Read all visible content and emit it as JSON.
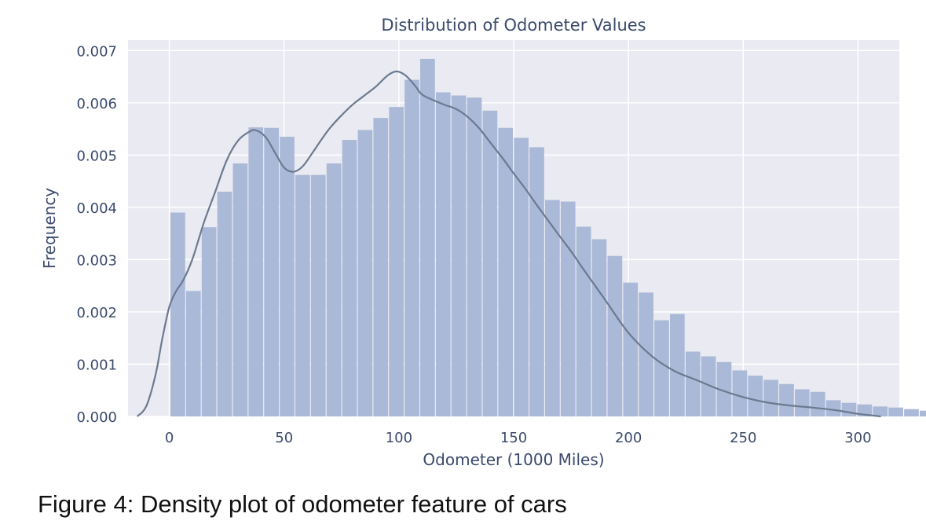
{
  "chart_data": {
    "type": "bar",
    "title": "Distribution of Odometer Values",
    "xlabel": "Odometer (1000 Miles)",
    "ylabel": "Frequency",
    "xlim": [
      -18,
      318
    ],
    "ylim": [
      0,
      0.0072
    ],
    "xticks": [
      "0",
      "50",
      "100",
      "150",
      "200",
      "250",
      "300"
    ],
    "yticks": [
      "0.000",
      "0.001",
      "0.002",
      "0.003",
      "0.004",
      "0.005",
      "0.006",
      "0.007"
    ],
    "grid": true,
    "bin_start": 0.5,
    "bin_width": 6.8,
    "series": [
      {
        "type": "histogram",
        "values": [
          0.0039,
          0.0024,
          0.00362,
          0.0043,
          0.00484,
          0.00553,
          0.00552,
          0.00535,
          0.00462,
          0.00462,
          0.00484,
          0.00529,
          0.00548,
          0.00571,
          0.00592,
          0.00644,
          0.00684,
          0.0062,
          0.00614,
          0.0061,
          0.00585,
          0.00552,
          0.00533,
          0.00515,
          0.00414,
          0.00411,
          0.00363,
          0.00339,
          0.00307,
          0.00256,
          0.00237,
          0.00184,
          0.00196,
          0.00124,
          0.00115,
          0.00104,
          0.00088,
          0.00078,
          0.0007,
          0.00062,
          0.00052,
          0.00047,
          0.00031,
          0.00026,
          0.00023,
          0.00019,
          0.00017,
          0.00014,
          0.00011,
          7e-05,
          5e-05,
          3e-05,
          2e-05
        ]
      },
      {
        "type": "kde",
        "x": [
          -14,
          -10,
          -6,
          -3,
          0,
          3,
          6,
          10,
          15,
          20,
          25,
          30,
          35,
          38,
          42,
          46,
          50,
          54,
          58,
          62,
          66,
          70,
          75,
          80,
          85,
          90,
          95,
          99,
          103,
          107,
          110,
          115,
          120,
          125,
          130,
          135,
          140,
          145,
          150,
          155,
          160,
          165,
          170,
          175,
          180,
          190,
          200,
          210,
          220,
          230,
          240,
          250,
          260,
          270,
          280,
          290,
          300,
          310
        ],
        "y": [
          0,
          0.0002,
          0.0008,
          0.0015,
          0.0021,
          0.0024,
          0.0026,
          0.003,
          0.0037,
          0.0043,
          0.0049,
          0.00528,
          0.00545,
          0.00547,
          0.00534,
          0.00505,
          0.00476,
          0.00468,
          0.00478,
          0.00502,
          0.00528,
          0.00552,
          0.00576,
          0.00597,
          0.00614,
          0.00631,
          0.00652,
          0.0066,
          0.00652,
          0.00633,
          0.00616,
          0.00605,
          0.00596,
          0.00588,
          0.00573,
          0.00551,
          0.00523,
          0.00495,
          0.00465,
          0.00436,
          0.00405,
          0.00375,
          0.00345,
          0.00316,
          0.00284,
          0.00222,
          0.0016,
          0.00116,
          0.00087,
          0.00069,
          0.00051,
          0.00037,
          0.00027,
          0.00021,
          0.00017,
          0.00012,
          5e-05,
          0.0
        ]
      }
    ],
    "colors": {
      "bars": "#aab9d7",
      "kde": "#6b7a8f",
      "plot_bg": "#eaeaf2",
      "grid": "#ffffff",
      "text": "#3b4a6b"
    }
  },
  "caption": "Figure 4: Density plot of odometer feature of cars"
}
